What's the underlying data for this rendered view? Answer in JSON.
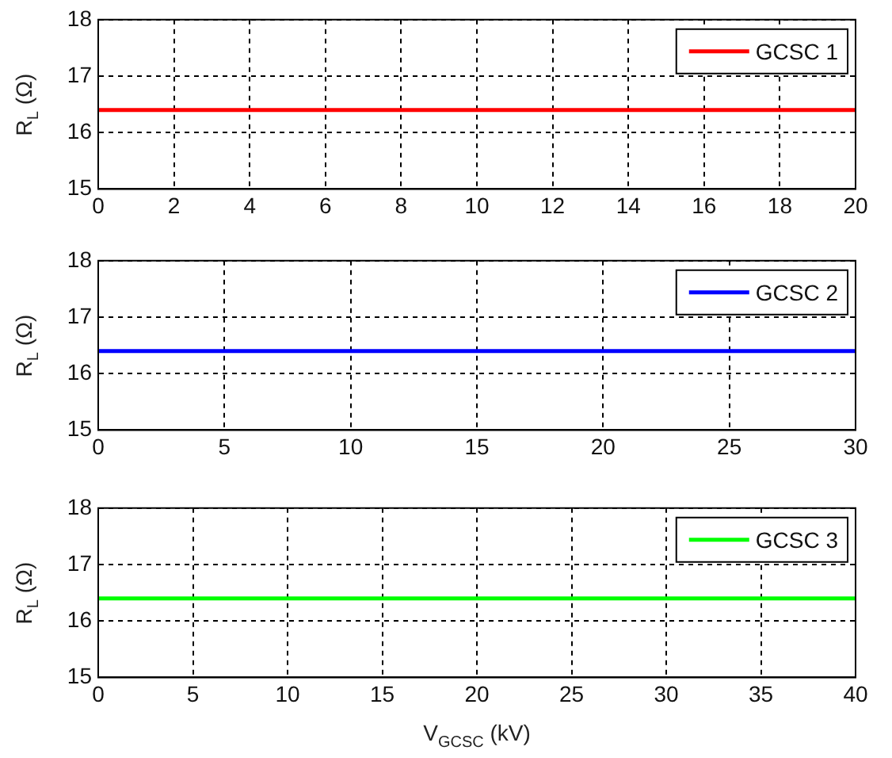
{
  "chart_data": [
    {
      "type": "line",
      "ylabel": "R$_{L}$ (Ω)",
      "x": [
        0,
        20
      ],
      "xlim": [
        0,
        20
      ],
      "xticks": [
        0,
        2,
        4,
        6,
        8,
        10,
        12,
        14,
        16,
        18,
        20
      ],
      "ylim": [
        15,
        18
      ],
      "yticks": [
        15,
        16,
        17,
        18
      ],
      "grid": true,
      "legend": "top right",
      "line_style": "solid",
      "marker": "none",
      "series": [
        {
          "name": "GCSC 1",
          "color": "#ff0000",
          "values": [
            16.4,
            16.4
          ]
        }
      ]
    },
    {
      "type": "line",
      "ylabel": "R$_{L}$ (Ω)",
      "x": [
        0,
        30
      ],
      "xlim": [
        0,
        30
      ],
      "xticks": [
        0,
        5,
        10,
        15,
        20,
        25,
        30
      ],
      "ylim": [
        15,
        18
      ],
      "yticks": [
        15,
        16,
        17,
        18
      ],
      "grid": true,
      "legend": "top right",
      "line_style": "solid",
      "marker": "none",
      "series": [
        {
          "name": "GCSC 2",
          "color": "#0000ff",
          "values": [
            16.4,
            16.4
          ]
        }
      ]
    },
    {
      "type": "line",
      "ylabel": "R$_{L}$ (Ω)",
      "xlabel": "V$_{GCSC}$ (kV)",
      "x": [
        0,
        40
      ],
      "xlim": [
        0,
        40
      ],
      "xticks": [
        0,
        5,
        10,
        15,
        20,
        25,
        30,
        35,
        40
      ],
      "ylim": [
        15,
        18
      ],
      "yticks": [
        15,
        16,
        17,
        18
      ],
      "grid": true,
      "legend": "top right",
      "line_style": "solid",
      "marker": "none",
      "series": [
        {
          "name": "GCSC 3",
          "color": "#00ff00",
          "values": [
            16.4,
            16.4
          ]
        }
      ]
    }
  ]
}
